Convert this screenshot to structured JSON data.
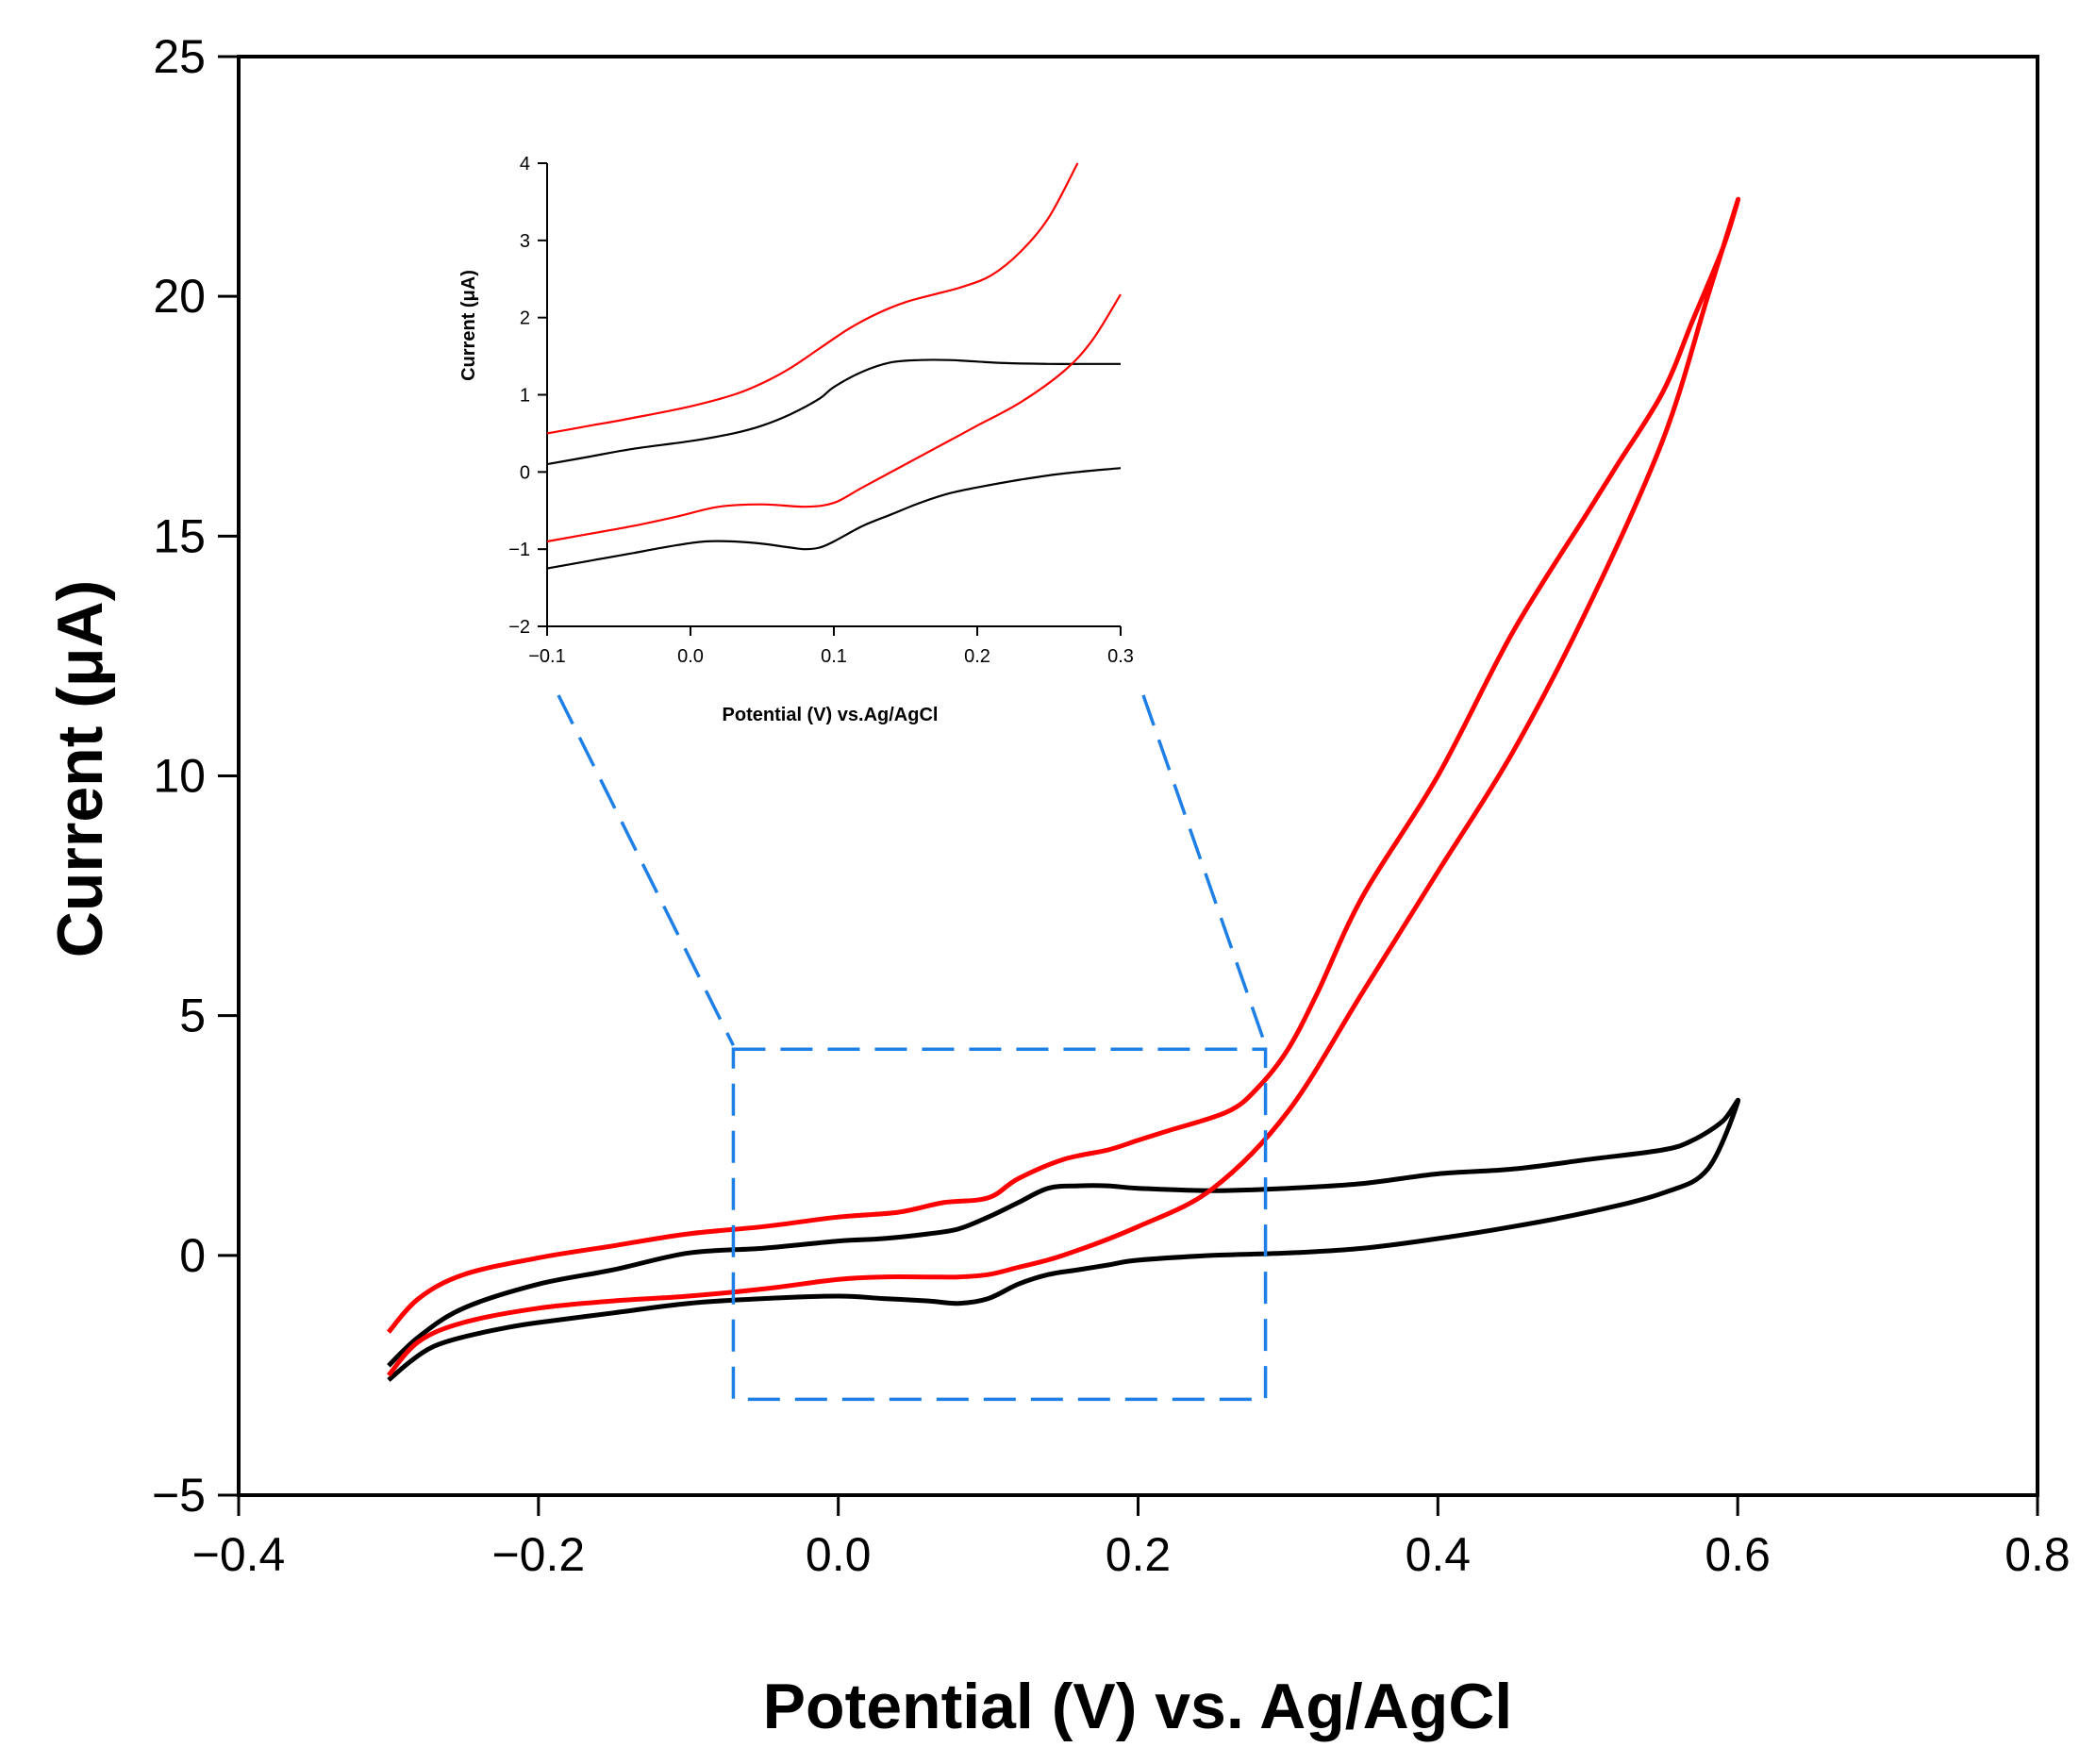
{
  "chart_data": {
    "type": "line",
    "xlabel": "Potential (V) vs. Ag/AgCl",
    "ylabel": "Current (μA)",
    "xlim": [
      -0.4,
      0.8
    ],
    "ylim": [
      -5,
      25
    ],
    "xticks": [
      "−0.4",
      "−0.2",
      "0.0",
      "0.2",
      "0.4",
      "0.6",
      "0.8"
    ],
    "yticks": [
      "−5",
      "0",
      "5",
      "10",
      "15",
      "20",
      "25"
    ],
    "grid": false,
    "series": [
      {
        "name": "black",
        "color": "#000000",
        "x": [
          -0.3,
          -0.285,
          -0.27,
          -0.25,
          -0.22,
          -0.2,
          -0.15,
          -0.1,
          -0.05,
          0.0,
          0.03,
          0.06,
          0.08,
          0.1,
          0.12,
          0.14,
          0.16,
          0.18,
          0.2,
          0.25,
          0.3,
          0.35,
          0.4,
          0.45,
          0.5,
          0.55,
          0.58,
          0.6,
          0.59,
          0.57,
          0.55,
          0.5,
          0.45,
          0.4,
          0.35,
          0.3,
          0.25,
          0.2,
          0.18,
          0.16,
          0.14,
          0.12,
          0.1,
          0.08,
          0.06,
          0.03,
          0.0,
          -0.05,
          -0.1,
          -0.15,
          -0.2,
          -0.25,
          -0.28,
          -0.3
        ],
        "y": [
          -2.6,
          -2.2,
          -1.9,
          -1.7,
          -1.5,
          -1.4,
          -1.2,
          -1.0,
          -0.9,
          -0.85,
          -0.9,
          -0.95,
          -1.0,
          -0.9,
          -0.6,
          -0.4,
          -0.3,
          -0.2,
          -0.1,
          0.0,
          0.05,
          0.15,
          0.35,
          0.6,
          0.9,
          1.3,
          1.8,
          3.2,
          2.8,
          2.4,
          2.2,
          2.0,
          1.8,
          1.7,
          1.5,
          1.4,
          1.35,
          1.4,
          1.45,
          1.45,
          1.4,
          1.1,
          0.8,
          0.55,
          0.45,
          0.35,
          0.3,
          0.15,
          0.05,
          -0.3,
          -0.6,
          -1.1,
          -1.7,
          -2.3
        ]
      },
      {
        "name": "red",
        "color": "#ff0000",
        "x": [
          -0.3,
          -0.28,
          -0.25,
          -0.2,
          -0.15,
          -0.1,
          -0.05,
          0.0,
          0.03,
          0.06,
          0.08,
          0.1,
          0.12,
          0.15,
          0.2,
          0.25,
          0.3,
          0.35,
          0.4,
          0.45,
          0.5,
          0.55,
          0.58,
          0.6,
          0.59,
          0.57,
          0.55,
          0.52,
          0.5,
          0.45,
          0.4,
          0.35,
          0.32,
          0.3,
          0.28,
          0.26,
          0.22,
          0.2,
          0.18,
          0.15,
          0.12,
          0.1,
          0.07,
          0.04,
          0.0,
          -0.05,
          -0.1,
          -0.15,
          -0.2,
          -0.25,
          -0.28,
          -0.3
        ],
        "y": [
          -2.5,
          -1.8,
          -1.4,
          -1.1,
          -0.95,
          -0.85,
          -0.7,
          -0.5,
          -0.45,
          -0.45,
          -0.45,
          -0.4,
          -0.25,
          0.0,
          0.6,
          1.4,
          3.0,
          5.5,
          8.0,
          10.5,
          13.5,
          17.0,
          20.0,
          22.0,
          21.0,
          19.5,
          18.0,
          16.5,
          15.5,
          13.0,
          10.0,
          7.5,
          5.5,
          4.3,
          3.5,
          3.0,
          2.6,
          2.4,
          2.2,
          2.0,
          1.6,
          1.2,
          1.1,
          0.9,
          0.8,
          0.6,
          0.45,
          0.2,
          -0.05,
          -0.4,
          -0.9,
          -1.6
        ]
      }
    ],
    "zoom_box": {
      "x": [
        -0.07,
        0.285
      ],
      "y": [
        -3.0,
        4.3
      ]
    },
    "inset": {
      "xlabel": "Potential (V) vs.Ag/AgCl",
      "ylabel": "Current (μA)",
      "xlim": [
        -0.1,
        0.3
      ],
      "ylim": [
        -2,
        4
      ],
      "xticks": [
        "−0.1",
        "0.0",
        "0.1",
        "0.2",
        "0.3"
      ],
      "yticks": [
        "−2",
        "−1",
        "0",
        "1",
        "2",
        "3",
        "4"
      ],
      "series": [
        {
          "name": "black-upper",
          "color": "#000000",
          "x": [
            -0.1,
            -0.07,
            -0.04,
            0.0,
            0.03,
            0.05,
            0.07,
            0.09,
            0.1,
            0.12,
            0.14,
            0.16,
            0.18,
            0.2,
            0.22,
            0.25,
            0.28,
            0.3
          ],
          "y": [
            0.1,
            0.2,
            0.3,
            0.4,
            0.5,
            0.6,
            0.75,
            0.95,
            1.1,
            1.3,
            1.42,
            1.45,
            1.45,
            1.43,
            1.41,
            1.4,
            1.4,
            1.4
          ]
        },
        {
          "name": "black-lower",
          "color": "#000000",
          "x": [
            -0.1,
            -0.07,
            -0.04,
            -0.01,
            0.01,
            0.03,
            0.05,
            0.07,
            0.08,
            0.09,
            0.1,
            0.12,
            0.14,
            0.16,
            0.18,
            0.2,
            0.23,
            0.26,
            0.3
          ],
          "y": [
            -1.25,
            -1.15,
            -1.05,
            -0.95,
            -0.9,
            -0.9,
            -0.93,
            -0.98,
            -1.0,
            -0.98,
            -0.9,
            -0.7,
            -0.55,
            -0.4,
            -0.28,
            -0.2,
            -0.1,
            -0.02,
            0.05
          ]
        },
        {
          "name": "red-upper",
          "color": "#ff0000",
          "x": [
            -0.1,
            -0.07,
            -0.04,
            0.0,
            0.03,
            0.05,
            0.07,
            0.09,
            0.11,
            0.13,
            0.15,
            0.17,
            0.19,
            0.21,
            0.23,
            0.25,
            0.27
          ],
          "y": [
            0.5,
            0.6,
            0.7,
            0.85,
            1.0,
            1.15,
            1.35,
            1.6,
            1.85,
            2.05,
            2.2,
            2.3,
            2.4,
            2.55,
            2.85,
            3.3,
            4.0
          ]
        },
        {
          "name": "red-lower",
          "color": "#ff0000",
          "x": [
            -0.1,
            -0.07,
            -0.04,
            -0.01,
            0.02,
            0.05,
            0.08,
            0.1,
            0.12,
            0.15,
            0.18,
            0.2,
            0.23,
            0.26,
            0.28,
            0.3
          ],
          "y": [
            -0.9,
            -0.8,
            -0.7,
            -0.58,
            -0.45,
            -0.42,
            -0.45,
            -0.4,
            -0.2,
            0.1,
            0.4,
            0.6,
            0.9,
            1.3,
            1.7,
            2.3
          ]
        }
      ]
    }
  }
}
